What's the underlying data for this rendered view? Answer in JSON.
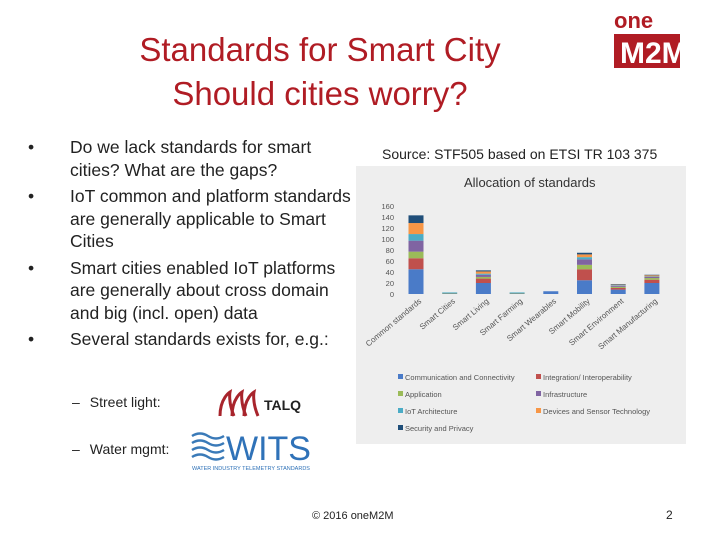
{
  "slide": {
    "title_line1": "Standards for Smart City",
    "title_line2": "Should cities worry?",
    "logo_text": "oneM2M",
    "source": "Source: STF505 based on ETSI TR 103 375",
    "bullets": [
      "Do we lack standards for smart cities? What are the gaps?",
      "IoT common and platform standards are generally applicable to Smart Cities",
      "Smart cities enabled IoT platforms are generally about cross domain and big (incl. open) data",
      "Several standards exists for, e.g.:"
    ],
    "sub_street": "Street light:",
    "sub_water": "Water mgmt:",
    "talq_text": "TALQ",
    "wits_text": "WITS",
    "wits_caption": "WATER INDUSTRY TELEMETRY STANDARDS",
    "footer": "© 2016 oneM2M",
    "page_number": "2"
  },
  "chart_data": {
    "type": "bar",
    "stacked": true,
    "title": "Allocation of standards",
    "xlabel": "",
    "ylabel": "",
    "ylim": [
      0,
      160
    ],
    "yticks": [
      "160",
      "140",
      "120",
      "100",
      "80",
      "60",
      "40",
      "20",
      "0"
    ],
    "categories": [
      "Common standards",
      "Smart Cities",
      "Smart Living",
      "Smart Farming",
      "Smart Wearables",
      "Smart Mobility",
      "Smart Environment",
      "Smart Manufacturing"
    ],
    "series": [
      {
        "name": "Communication and Connectivity",
        "color": "#4a7bc8",
        "values": [
          45,
          1,
          20,
          1,
          5,
          25,
          8,
          20
        ]
      },
      {
        "name": "Integration/ Interoperability",
        "color": "#c0504d",
        "values": [
          20,
          0,
          8,
          0,
          0,
          20,
          3,
          6
        ]
      },
      {
        "name": "Application",
        "color": "#9bbb59",
        "values": [
          12,
          1,
          3,
          1,
          0,
          8,
          2,
          3
        ]
      },
      {
        "name": "Infrastructure",
        "color": "#8064a2",
        "values": [
          20,
          0,
          4,
          0,
          0,
          10,
          2,
          2
        ]
      },
      {
        "name": "IoT Architecture",
        "color": "#4bacc6",
        "values": [
          12,
          1,
          2,
          1,
          0,
          4,
          1,
          1
        ]
      },
      {
        "name": "Devices and Sensor Technology",
        "color": "#f79646",
        "values": [
          20,
          0,
          4,
          0,
          0,
          5,
          1,
          2
        ]
      },
      {
        "name": "Security and Privacy",
        "color": "#1f4e79",
        "values": [
          14,
          0,
          2,
          0,
          0,
          3,
          1,
          1
        ]
      }
    ]
  }
}
